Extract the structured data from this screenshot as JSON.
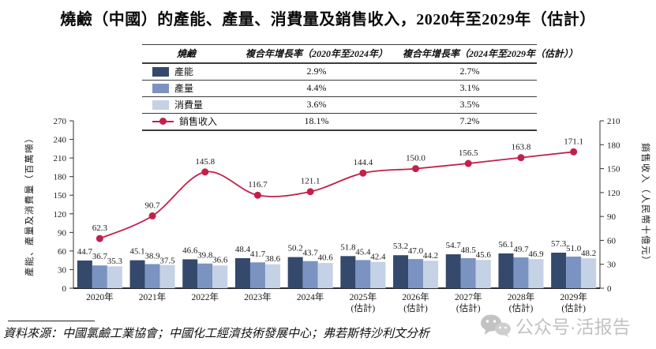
{
  "title": "燒鹼（中國）的產能、產量、消費量及銷售收入，2020年至2029年（估計）",
  "legend_table": {
    "headers": [
      "燒鹼",
      "複合年增長率（2020年至2024年）",
      "複合年增長率（2024年至2029年（估計））"
    ],
    "rows": [
      {
        "label": "產能",
        "cagr_2020_2024": "2.9%",
        "cagr_2024_2029": "2.7%"
      },
      {
        "label": "產量",
        "cagr_2020_2024": "4.4%",
        "cagr_2024_2029": "3.1%"
      },
      {
        "label": "消費量",
        "cagr_2020_2024": "3.6%",
        "cagr_2024_2029": "3.5%"
      },
      {
        "label": "銷售收入",
        "cagr_2020_2024": "18.1%",
        "cagr_2024_2029": "7.2%"
      }
    ]
  },
  "chart_data": {
    "type": "bar+line",
    "categories": [
      "2020年",
      "2021年",
      "2022年",
      "2023年",
      "2024年",
      "2025年",
      "2026年",
      "2027年",
      "2028年",
      "2029年"
    ],
    "category_suffix": [
      "",
      "",
      "",
      "",
      "",
      "(估計)",
      "(估計)",
      "(估計)",
      "(估計)",
      "(估計)"
    ],
    "series": [
      {
        "name": "產能",
        "type": "bar",
        "axis": "left",
        "color": "#34496b",
        "values": [
          44.7,
          45.1,
          46.6,
          48.4,
          50.2,
          51.8,
          53.2,
          54.7,
          56.1,
          57.3
        ]
      },
      {
        "name": "產量",
        "type": "bar",
        "axis": "left",
        "color": "#7b93c0",
        "values": [
          36.7,
          38.9,
          39.8,
          41.7,
          43.7,
          45.4,
          47.0,
          48.5,
          49.7,
          51.0
        ]
      },
      {
        "name": "消費量",
        "type": "bar",
        "axis": "left",
        "color": "#c5d1e4",
        "values": [
          35.3,
          37.5,
          36.6,
          38.6,
          40.6,
          42.4,
          44.2,
          45.6,
          46.9,
          48.2
        ]
      },
      {
        "name": "銷售收入",
        "type": "line",
        "axis": "right",
        "color": "#c2204a",
        "values": [
          62.3,
          90.7,
          145.8,
          116.7,
          121.1,
          144.4,
          150.0,
          156.5,
          163.8,
          171.1
        ]
      }
    ],
    "left_axis": {
      "label": "產能、產量及消費量（百萬噸）",
      "min": 0,
      "max": 270,
      "step": 30
    },
    "right_axis": {
      "label": "銷售收入（人民幣十億元）",
      "min": 0,
      "max": 210,
      "step": 30
    },
    "grid": false,
    "legend_position": "table-top"
  },
  "source": "資料來源：中國氯鹼工業協會；中國化工經濟技術發展中心；弗若斯特沙利文分析",
  "watermark": {
    "icon": "wechat-icon",
    "text": "公众号·活报告",
    "color": "#c2c2c2"
  }
}
